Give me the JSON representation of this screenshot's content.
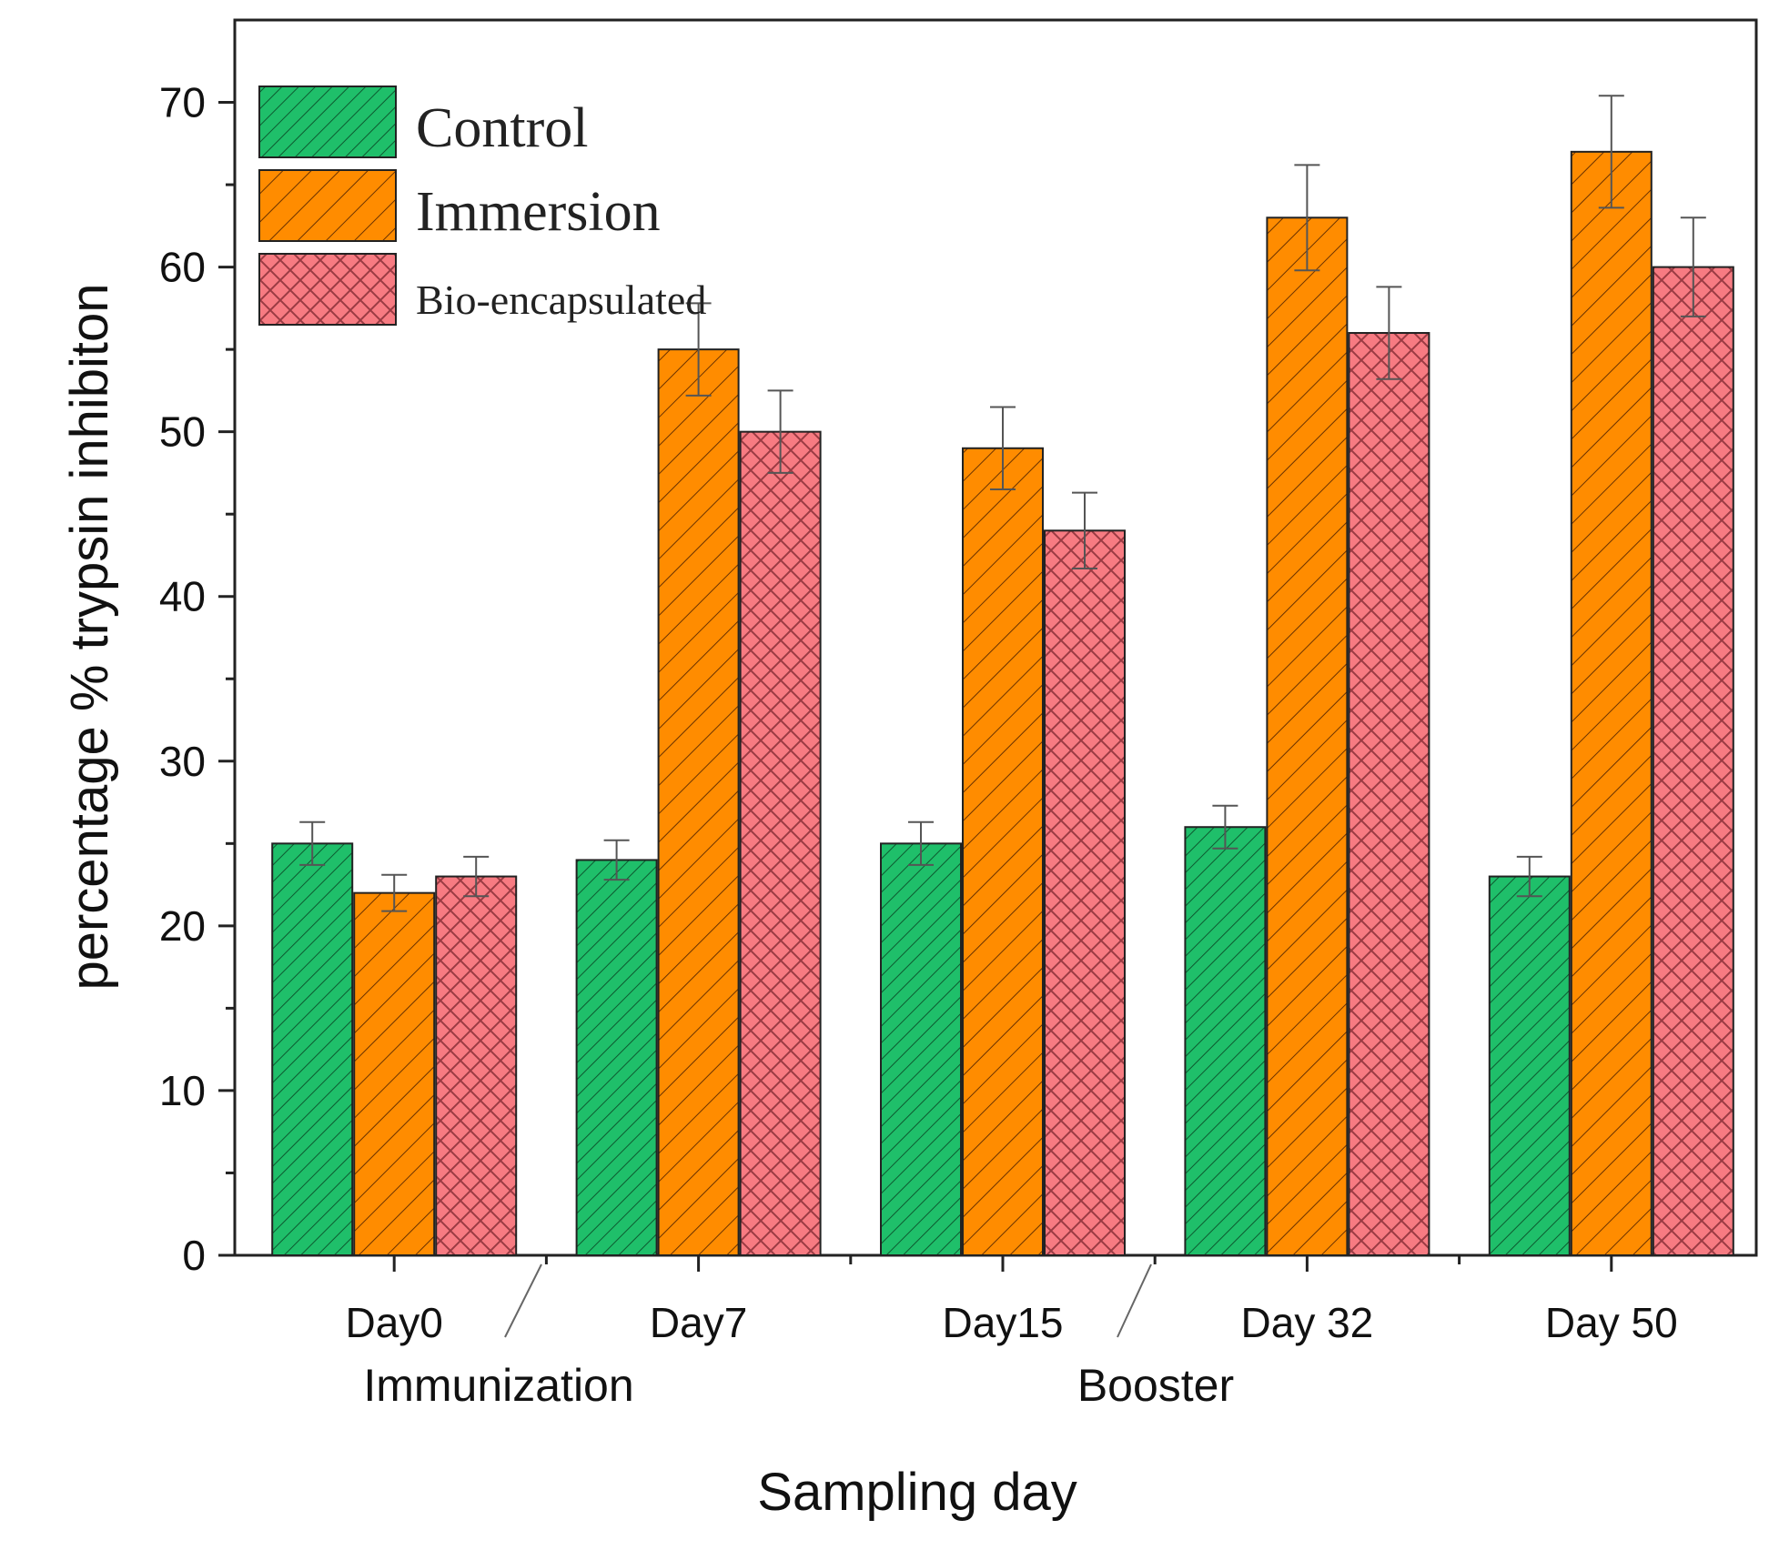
{
  "chart_data": {
    "type": "bar",
    "title": "",
    "xlabel": "Sampling day",
    "ylabel": "percentage % trypsin inhibiton",
    "ylim": [
      0,
      75
    ],
    "yticks": [
      0,
      10,
      20,
      30,
      40,
      50,
      60,
      70
    ],
    "categories": [
      "Day0",
      "Day7",
      "Day15",
      "Day 32",
      "Day 50"
    ],
    "series": [
      {
        "name": "Control",
        "color": "#1fbf6a",
        "pattern": "dense-diagonal",
        "values": [
          25,
          24,
          25,
          26,
          23
        ],
        "errors": [
          1.3,
          1.2,
          1.3,
          1.3,
          1.2
        ]
      },
      {
        "name": "Immersion",
        "color": "#ff8c00",
        "pattern": "diagonal",
        "values": [
          22,
          55,
          49,
          63,
          67
        ],
        "errors": [
          1.1,
          2.8,
          2.5,
          3.2,
          3.4
        ]
      },
      {
        "name": "Bio-encapsulated",
        "color": "#f77b82",
        "pattern": "crosshatch",
        "values": [
          23,
          50,
          44,
          56,
          60
        ],
        "errors": [
          1.2,
          2.5,
          2.3,
          2.8,
          3.0
        ]
      }
    ],
    "legend_position": "top-left",
    "grid": false,
    "annotations": [
      {
        "text": "Immunization"
      },
      {
        "text": "Booster"
      }
    ]
  }
}
